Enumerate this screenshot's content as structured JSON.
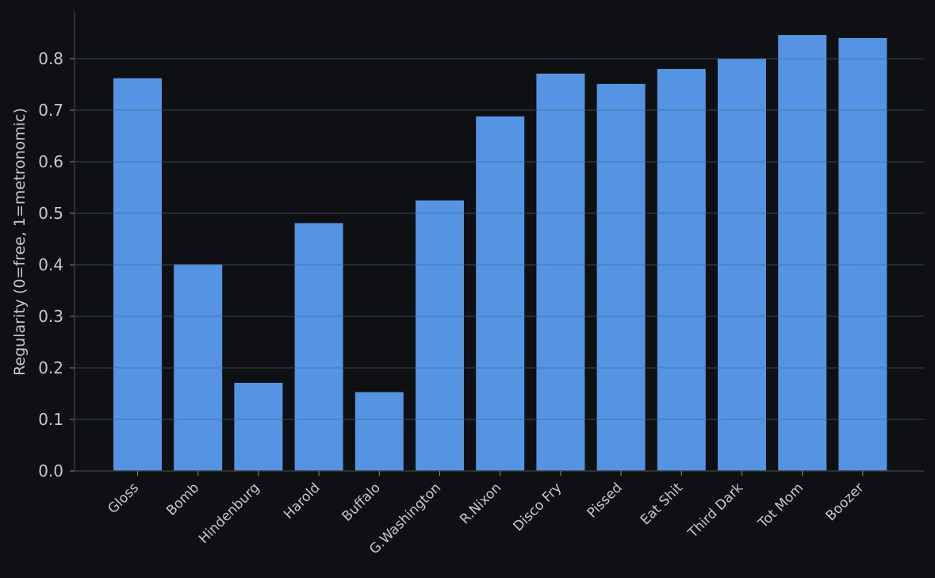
{
  "chart_data": {
    "type": "bar",
    "title": "",
    "xlabel": "",
    "ylabel": "Regularity (0=free, 1=metronomic)",
    "ylim": [
      0,
      0.89
    ],
    "yticks": [
      0.0,
      0.1,
      0.2,
      0.3,
      0.4,
      0.5,
      0.6,
      0.7,
      0.8
    ],
    "ytick_labels": [
      "0.0",
      "0.1",
      "0.2",
      "0.3",
      "0.4",
      "0.5",
      "0.6",
      "0.7",
      "0.8"
    ],
    "categories": [
      "Gloss",
      "Bomb",
      "Hindenburg",
      "Harold",
      "Buffalo",
      "G.Washington",
      "R.Nixon",
      "Disco Fry",
      "Pissed",
      "Eat Shit",
      "Third Dark",
      "Tot Mom",
      "Boozer"
    ],
    "values": [
      0.762,
      0.401,
      0.171,
      0.481,
      0.153,
      0.525,
      0.688,
      0.771,
      0.751,
      0.78,
      0.8,
      0.846,
      0.84
    ],
    "grid": true,
    "legend": "none"
  },
  "colors": {
    "background": "#0f1013",
    "bar": "#5593e3",
    "grid": "#4b5a6e",
    "axis": "#3a3a3a",
    "text": "#c8c8c8"
  }
}
